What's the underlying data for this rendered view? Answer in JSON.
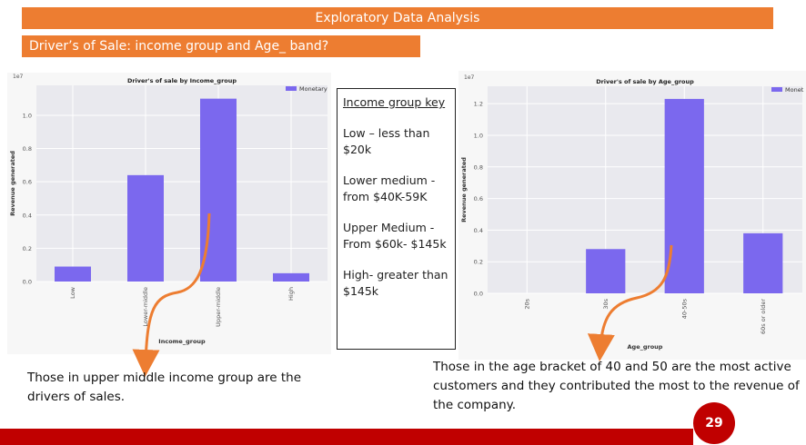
{
  "slide": {
    "title": "Exploratory Data Analysis",
    "subtitle": "Driver’s of Sale:  income group and Age_ band?",
    "page_number": "29",
    "accent_color": "#ED7D31",
    "footer_color": "#C00000"
  },
  "income_key": {
    "title": "Income group key",
    "items": [
      "Low – less than $20k",
      "Lower medium - from $40K-59K",
      "Upper Medium - From $60k- $145k",
      "High- greater than $145k"
    ]
  },
  "captions": {
    "left": "Those in upper middle income group are the drivers of sales.",
    "right": "Those in the age bracket of 40 and 50 are the most active customers and they contributed the most to the revenue of the company."
  },
  "chart_data": [
    {
      "type": "bar",
      "title": "Driver's of sale by Income_group",
      "xlabel": "Income_group",
      "ylabel": "Revenue generated",
      "scale_label": "1e7",
      "categories": [
        "Low",
        "Lower-middle",
        "Upper-middle",
        "High"
      ],
      "series": [
        {
          "name": "Monetary",
          "values": [
            0.09,
            0.64,
            1.1,
            0.05
          ],
          "color": "#7B68EE"
        }
      ],
      "ylim": [
        0,
        1.18
      ],
      "yticks": [
        "0.0",
        "0.2",
        "0.4",
        "0.6",
        "0.8",
        "1.0"
      ],
      "legend": "top-right",
      "grid": true
    },
    {
      "type": "bar",
      "title": "Driver's of sale by Age_group",
      "xlabel": "Age_group",
      "ylabel": "Revenue generated",
      "scale_label": "1e7",
      "categories": [
        "20s",
        "30s",
        "40-50s",
        "60s or older"
      ],
      "series": [
        {
          "name": "Monet",
          "values": [
            0.0,
            0.28,
            1.23,
            0.38
          ],
          "color": "#7B68EE"
        }
      ],
      "ylim": [
        0,
        1.31
      ],
      "yticks": [
        "0.0",
        "0.2",
        "0.4",
        "0.6",
        "0.8",
        "1.0",
        "1.2"
      ],
      "legend": "top-right",
      "grid": true
    }
  ]
}
